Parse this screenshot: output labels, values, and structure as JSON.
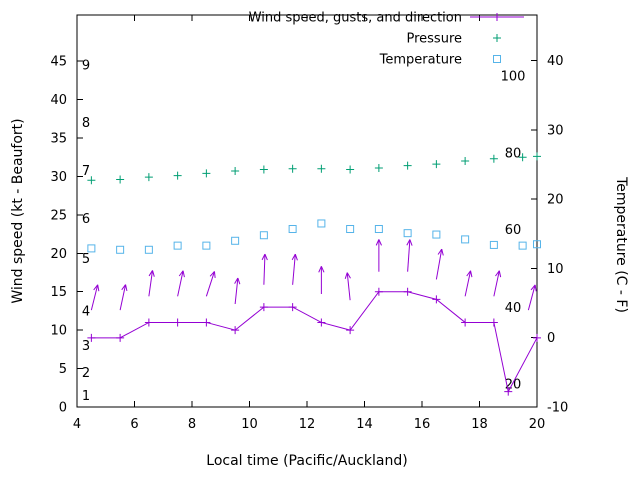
{
  "chart_data": {
    "type": "line",
    "title": "",
    "xlabel": "Local time (Pacific/Auckland)",
    "ylabel_left": "Wind speed (kt - Beaufort)",
    "ylabel_right": "Temperature (C - F)",
    "xlim": [
      4,
      20
    ],
    "x_ticks": [
      4,
      6,
      8,
      10,
      12,
      14,
      16,
      18,
      20
    ],
    "y_left_lim": [
      0,
      51
    ],
    "y_left_ticks": [
      0,
      5,
      10,
      15,
      20,
      25,
      30,
      35,
      40,
      45
    ],
    "y_right_lim": [
      -10,
      46.6
    ],
    "y_right_ticks": [
      -10,
      0,
      10,
      20,
      30,
      40
    ],
    "beaufort_scale_labels": [
      {
        "label": "1",
        "kt": 1.5
      },
      {
        "label": "2",
        "kt": 4.5
      },
      {
        "label": "3",
        "kt": 8
      },
      {
        "label": "4",
        "kt": 12.5
      },
      {
        "label": "5",
        "kt": 19.3
      },
      {
        "label": "6",
        "kt": 24.5
      },
      {
        "label": "7",
        "kt": 30.8
      },
      {
        "label": "8",
        "kt": 37
      },
      {
        "label": "9",
        "kt": 44.5
      }
    ],
    "fahrenheit_scale_labels": [
      {
        "label": "20",
        "c": -6.7
      },
      {
        "label": "40",
        "c": 4.4
      },
      {
        "label": "60",
        "c": 15.6
      },
      {
        "label": "80",
        "c": 26.7
      },
      {
        "label": "100",
        "c": 37.8
      }
    ],
    "legend": [
      {
        "label": "Wind speed, gusts, and direction",
        "marker": "line-plus",
        "color": "#9400d3"
      },
      {
        "label": "Pressure",
        "marker": "plus",
        "color": "#009e73"
      },
      {
        "label": "Temperature",
        "marker": "square",
        "color": "#56b4e9"
      }
    ],
    "series": [
      {
        "name": "Wind speed, gusts, and direction",
        "axis": "left",
        "style": "line-plus",
        "color": "#9400d3",
        "x": [
          4.5,
          5.5,
          6.5,
          7.5,
          8.5,
          9.5,
          10.5,
          11.5,
          12.5,
          13.5,
          14.5,
          15.5,
          16.5,
          17.5,
          18.5,
          19,
          20
        ],
        "values": [
          9,
          9,
          11,
          11,
          11,
          10,
          13,
          13,
          11,
          10,
          15,
          15,
          14,
          11,
          11,
          2,
          9
        ]
      },
      {
        "name": "Pressure",
        "axis": "left",
        "style": "plus",
        "color": "#009e73",
        "x": [
          4.5,
          5.5,
          6.5,
          7.5,
          8.5,
          9.5,
          10.5,
          11.5,
          12.5,
          13.5,
          14.5,
          15.5,
          16.5,
          17.5,
          18.5,
          19.5,
          20
        ],
        "values": [
          29.5,
          29.6,
          29.9,
          30.1,
          30.4,
          30.7,
          30.9,
          31.0,
          31.0,
          30.9,
          31.1,
          31.4,
          31.6,
          32.0,
          32.3,
          32.5,
          32.6
        ]
      },
      {
        "name": "Temperature",
        "axis": "right",
        "style": "square",
        "color": "#56b4e9",
        "x": [
          4.5,
          5.5,
          6.5,
          7.5,
          8.5,
          9.5,
          10.5,
          11.5,
          12.5,
          13.5,
          14.5,
          15.5,
          16.5,
          17.5,
          18.5,
          19.5,
          20
        ],
        "values": [
          12.9,
          12.7,
          12.7,
          13.3,
          13.3,
          14.0,
          14.8,
          15.7,
          16.5,
          15.7,
          15.7,
          15.1,
          14.9,
          14.2,
          13.4,
          13.3,
          13.5
        ]
      }
    ],
    "wind_arrows": [
      {
        "x": 4.5,
        "base_kt": 12.6,
        "len_kt": 3.4,
        "angle_deg": 14
      },
      {
        "x": 5.5,
        "base_kt": 12.6,
        "len_kt": 3.4,
        "angle_deg": 12
      },
      {
        "x": 6.5,
        "base_kt": 14.4,
        "len_kt": 3.4,
        "angle_deg": 8
      },
      {
        "x": 7.5,
        "base_kt": 14.4,
        "len_kt": 3.4,
        "angle_deg": 12
      },
      {
        "x": 8.5,
        "base_kt": 14.4,
        "len_kt": 3.4,
        "angle_deg": 18
      },
      {
        "x": 9.5,
        "base_kt": 13.4,
        "len_kt": 3.4,
        "angle_deg": 6
      },
      {
        "x": 10.5,
        "base_kt": 15.9,
        "len_kt": 4.0,
        "angle_deg": 2
      },
      {
        "x": 11.5,
        "base_kt": 15.9,
        "len_kt": 4.0,
        "angle_deg": 5
      },
      {
        "x": 12.5,
        "base_kt": 14.7,
        "len_kt": 3.6,
        "angle_deg": 0
      },
      {
        "x": 13.5,
        "base_kt": 13.9,
        "len_kt": 3.6,
        "angle_deg": -6
      },
      {
        "x": 14.5,
        "base_kt": 17.6,
        "len_kt": 4.2,
        "angle_deg": 0
      },
      {
        "x": 15.5,
        "base_kt": 17.6,
        "len_kt": 4.2,
        "angle_deg": 4
      },
      {
        "x": 16.5,
        "base_kt": 16.6,
        "len_kt": 4.0,
        "angle_deg": 10
      },
      {
        "x": 17.5,
        "base_kt": 14.4,
        "len_kt": 3.4,
        "angle_deg": 12
      },
      {
        "x": 18.5,
        "base_kt": 14.4,
        "len_kt": 3.4,
        "angle_deg": 12
      },
      {
        "x": 19.7,
        "base_kt": 12.6,
        "len_kt": 3.4,
        "angle_deg": 15
      }
    ],
    "colors": {
      "wind": "#9400d3",
      "pressure": "#009e73",
      "temperature": "#56b4e9",
      "axis": "#000000",
      "background": "#ffffff"
    }
  }
}
